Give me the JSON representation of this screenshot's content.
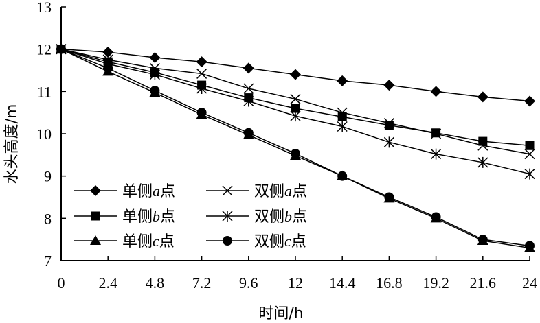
{
  "chart_data": {
    "type": "line",
    "xlabel": "时间/h",
    "ylabel": "水头高度/m",
    "xlim": [
      0,
      24
    ],
    "ylim": [
      7,
      13
    ],
    "x_ticks": [
      "0",
      "2.4",
      "4.8",
      "7.2",
      "9.6",
      "12",
      "14.4",
      "16.8",
      "19.2",
      "21.6",
      "24"
    ],
    "y_ticks": [
      "7",
      "8",
      "9",
      "10",
      "11",
      "12",
      "13"
    ],
    "grid": false,
    "legend_position": "bottom-left",
    "x": [
      0,
      2.4,
      4.8,
      7.2,
      9.6,
      12,
      14.4,
      16.8,
      19.2,
      21.6,
      24
    ],
    "series": [
      {
        "name": "单侧a点",
        "legend": {
          "prefix": "单侧",
          "var": "a",
          "suffix": "点"
        },
        "marker": "diamond",
        "values": [
          12.0,
          11.93,
          11.8,
          11.7,
          11.55,
          11.4,
          11.25,
          11.15,
          11.0,
          10.87,
          10.77
        ]
      },
      {
        "name": "单侧b点",
        "legend": {
          "prefix": "单侧",
          "var": "b",
          "suffix": "点"
        },
        "marker": "square",
        "values": [
          12.0,
          11.7,
          11.45,
          11.15,
          10.85,
          10.6,
          10.4,
          10.2,
          10.02,
          9.82,
          9.72
        ]
      },
      {
        "name": "单侧c点",
        "legend": {
          "prefix": "单侧",
          "var": "c",
          "suffix": "点"
        },
        "marker": "triangle",
        "values": [
          12.0,
          11.47,
          10.97,
          10.45,
          9.97,
          9.48,
          9.0,
          8.47,
          8.0,
          7.47,
          7.3
        ]
      },
      {
        "name": "双侧a点",
        "legend": {
          "prefix": "双侧",
          "var": "a",
          "suffix": "点"
        },
        "marker": "x",
        "values": [
          12.0,
          11.75,
          11.55,
          11.42,
          11.07,
          10.82,
          10.5,
          10.25,
          10.0,
          9.72,
          9.52
        ]
      },
      {
        "name": "双侧b点",
        "legend": {
          "prefix": "双侧",
          "var": "b",
          "suffix": "点"
        },
        "marker": "asterisk",
        "values": [
          12.0,
          11.65,
          11.4,
          11.07,
          10.77,
          10.42,
          10.17,
          9.8,
          9.52,
          9.32,
          9.05
        ]
      },
      {
        "name": "双侧c点",
        "legend": {
          "prefix": "双侧",
          "var": "c",
          "suffix": "点"
        },
        "marker": "circle",
        "values": [
          12.0,
          11.55,
          11.02,
          10.5,
          10.02,
          9.53,
          9.0,
          8.5,
          8.03,
          7.5,
          7.35
        ]
      }
    ]
  }
}
